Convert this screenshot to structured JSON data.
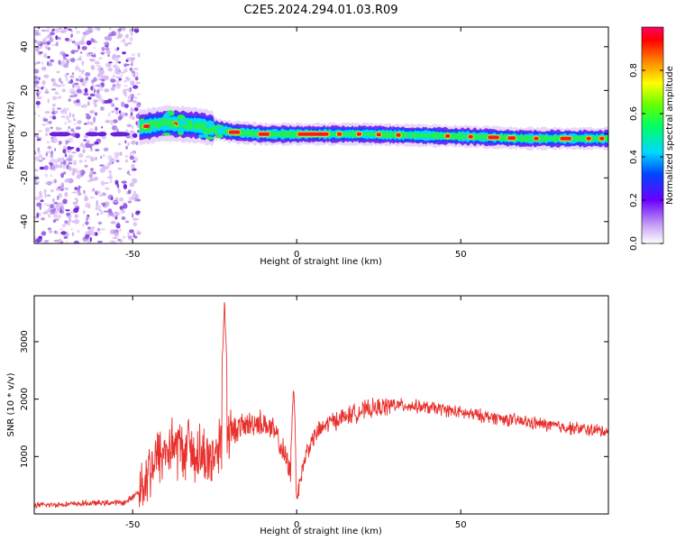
{
  "title": "C2E5.2024.294.01.03.R09",
  "colors": {
    "snr_line": "#e8302c",
    "speck_light": "#d8b8f4",
    "speck_mid": "#a070e8",
    "speck_dark": "#6a1fd8"
  },
  "chart_data": [
    {
      "type": "heatmap",
      "xlabel": "Height of straight line (km)",
      "ylabel": "Frequency (Hz)",
      "xlim": [
        -80,
        95
      ],
      "ylim": [
        -50,
        49
      ],
      "xticks": [
        {
          "v": -50,
          "label": "-50"
        },
        {
          "v": 0,
          "label": "0"
        },
        {
          "v": 50,
          "label": "50"
        }
      ],
      "yticks": [
        {
          "v": -40,
          "label": "-40"
        },
        {
          "v": -20,
          "label": "-20"
        },
        {
          "v": 0,
          "label": "0"
        },
        {
          "v": 20,
          "label": "20"
        },
        {
          "v": 40,
          "label": "40"
        }
      ],
      "colorbar": {
        "label": "Normalized spectral amplitude",
        "range": [
          0,
          1
        ],
        "ticks": [
          {
            "v": 0.0,
            "label": "0.0"
          },
          {
            "v": 0.2,
            "label": "0.2"
          },
          {
            "v": 0.4,
            "label": "0.4"
          },
          {
            "v": 0.6,
            "label": "0.6"
          },
          {
            "v": 0.8,
            "label": "0.8"
          }
        ]
      },
      "noise_region": {
        "x": [
          -80,
          -48
        ],
        "f": [
          -50,
          49
        ]
      },
      "ridge": [
        {
          "x": -48,
          "f": 3
        },
        {
          "x": -40,
          "f": 5
        },
        {
          "x": -30,
          "f": 4
        },
        {
          "x": -20,
          "f": 1
        },
        {
          "x": -10,
          "f": 0
        },
        {
          "x": 0,
          "f": 0
        },
        {
          "x": 20,
          "f": 0
        },
        {
          "x": 50,
          "f": -1
        },
        {
          "x": 70,
          "f": -2
        },
        {
          "x": 95,
          "f": -2
        }
      ]
    },
    {
      "type": "line",
      "xlabel": "Height of straight line (km)",
      "ylabel": "SNR (10 * v/v)",
      "xlim": [
        -80,
        95
      ],
      "ylim": [
        0,
        3800
      ],
      "xticks": [
        {
          "v": -50,
          "label": "-50"
        },
        {
          "v": 0,
          "label": "0"
        },
        {
          "v": 50,
          "label": "50"
        }
      ],
      "yticks": [
        {
          "v": 1000,
          "label": "1000"
        },
        {
          "v": 2000,
          "label": "2000"
        },
        {
          "v": 3000,
          "label": "3000"
        }
      ],
      "series": [
        {
          "color": "#e8302c",
          "x": [
            -80,
            -70,
            -60,
            -52,
            -48,
            -45,
            -42,
            -38,
            -34,
            -30,
            -26,
            -23,
            -21,
            -18,
            -15,
            -12,
            -9,
            -6,
            -3,
            0,
            3,
            6,
            10,
            15,
            20,
            25,
            30,
            35,
            40,
            45,
            50,
            55,
            60,
            65,
            70,
            75,
            80,
            85,
            90,
            95
          ],
          "y": [
            150,
            170,
            190,
            200,
            400,
            800,
            1000,
            1200,
            1100,
            1050,
            950,
            1300,
            1400,
            1500,
            1550,
            1600,
            1550,
            1350,
            900,
            300,
            1100,
            1400,
            1600,
            1700,
            1800,
            1850,
            1900,
            1880,
            1850,
            1820,
            1760,
            1720,
            1680,
            1640,
            1600,
            1560,
            1520,
            1490,
            1460,
            1440
          ]
        }
      ],
      "peaks": [
        {
          "x": -22,
          "y": 3700
        },
        {
          "x": -1,
          "y": 2250
        },
        {
          "x": -33,
          "y": 1750
        }
      ]
    }
  ]
}
